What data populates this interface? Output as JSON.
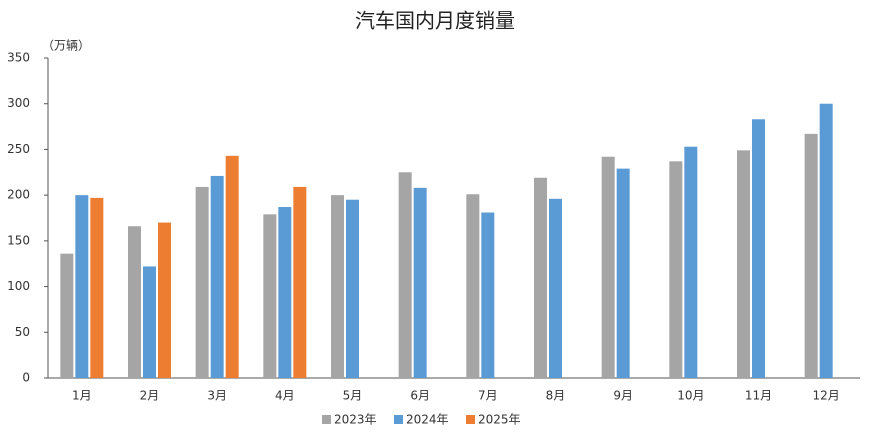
{
  "chart_data": {
    "type": "bar",
    "title": "汽车国内月度销量",
    "y_unit": "（万辆）",
    "categories": [
      "1月",
      "2月",
      "3月",
      "4月",
      "5月",
      "6月",
      "7月",
      "8月",
      "9月",
      "10月",
      "11月",
      "12月"
    ],
    "series": [
      {
        "name": "2023年",
        "color": "#a5a5a5",
        "values": [
          136,
          166,
          209,
          179,
          200,
          225,
          201,
          219,
          242,
          237,
          249,
          267
        ]
      },
      {
        "name": "2024年",
        "color": "#5b9bd5",
        "values": [
          200,
          122,
          221,
          187,
          195,
          208,
          181,
          196,
          229,
          253,
          283,
          300
        ]
      },
      {
        "name": "2025年",
        "color": "#ed7d31",
        "values": [
          197,
          170,
          243,
          209,
          null,
          null,
          null,
          null,
          null,
          null,
          null,
          null
        ]
      }
    ],
    "ylim": [
      0,
      350
    ],
    "yticks": [
      0,
      50,
      100,
      150,
      200,
      250,
      300,
      350
    ],
    "grid": false
  }
}
